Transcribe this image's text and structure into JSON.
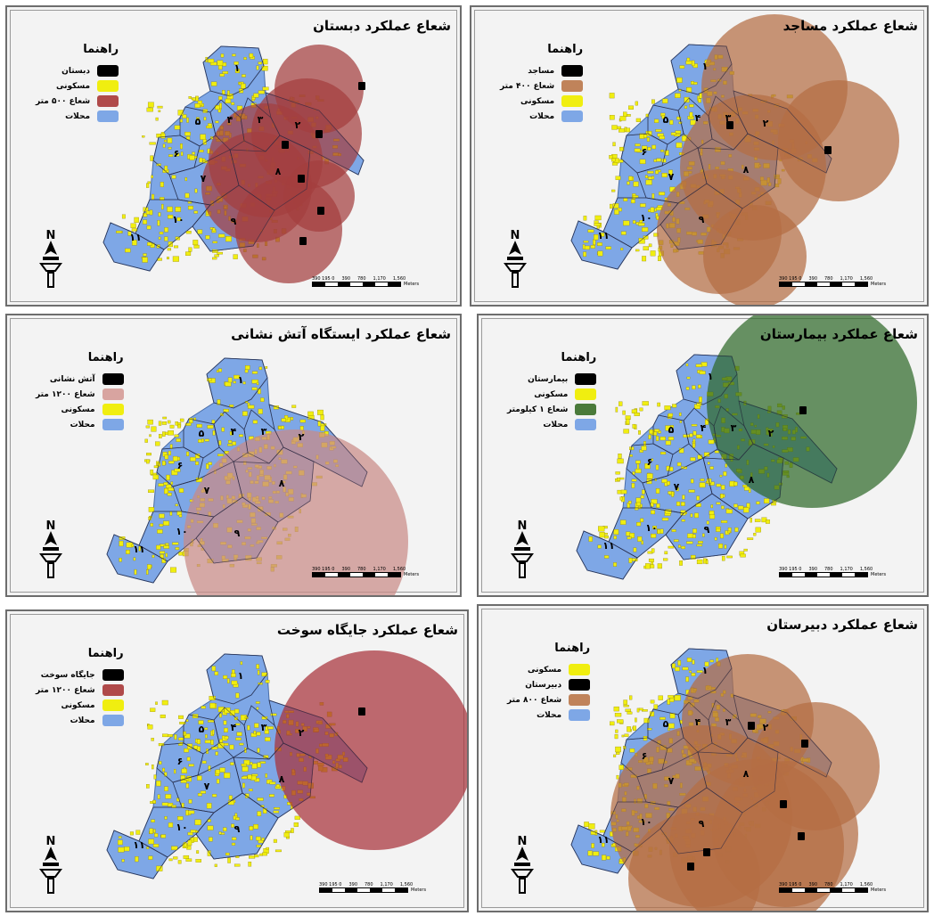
{
  "legend_title": "راهنما",
  "scale_ticks": [
    "390 195 0",
    "390",
    "780",
    "1,170",
    "1,560"
  ],
  "scale_unit": "Meters",
  "north_label": "N",
  "district_labels": [
    "۱",
    "۲",
    "۳",
    "۴",
    "۵",
    "۶",
    "۷",
    "۸",
    "۹",
    "۱۰",
    "۱۱"
  ],
  "colors": {
    "district": "#7ea7e6",
    "residential": "#f0ee10",
    "facility": "#000000",
    "panel_bg": "#f3f3f3"
  },
  "panels": [
    {
      "title": "شعاع عملکرد دبستان",
      "legend": [
        {
          "label": "دبستان",
          "color": "#000000"
        },
        {
          "label": "مسکونی",
          "color": "#f0ee10"
        },
        {
          "label": "شعاع ۵۰۰ متر",
          "color": "#b04a4a"
        },
        {
          "label": "محلات",
          "color": "#7ea7e6"
        }
      ],
      "buffer_color": "#a43e3e"
    },
    {
      "title": "شعاع عملکرد مساجد",
      "legend": [
        {
          "label": "مساجد",
          "color": "#000000"
        },
        {
          "label": "شعاع ۴۰۰ متر",
          "color": "#c0835a"
        },
        {
          "label": "مسکونی",
          "color": "#f0ee10"
        },
        {
          "label": "محلات",
          "color": "#7ea7e6"
        }
      ],
      "buffer_color": "#b46e44"
    },
    {
      "title": "شعاع عملکرد ایستگاه آتش نشانی",
      "legend": [
        {
          "label": "آتش نشانی",
          "color": "#000000"
        },
        {
          "label": "شعاع ۱۲۰۰ متر",
          "color": "#d8a4a0"
        },
        {
          "label": "مسکونی",
          "color": "#f0ee10"
        },
        {
          "label": "محلات",
          "color": "#7ea7e6"
        }
      ],
      "buffer_color": "#c98a86"
    },
    {
      "title": "شعاع عملکرد بیمارستان",
      "legend": [
        {
          "label": "بیمارستان",
          "color": "#000000"
        },
        {
          "label": "مسکونی",
          "color": "#f0ee10"
        },
        {
          "label": "شعاع ۱ کیلومتر",
          "color": "#4a7a3a"
        },
        {
          "label": "محلات",
          "color": "#7ea7e6"
        }
      ],
      "buffer_color": "#2f6a2a"
    },
    {
      "title": "شعاع عملکرد جایگاه سوخت",
      "legend": [
        {
          "label": "جایگاه سوخت",
          "color": "#000000"
        },
        {
          "label": "شعاع ۱۲۰۰ متر",
          "color": "#b04a4a"
        },
        {
          "label": "مسکونی",
          "color": "#f0ee10"
        },
        {
          "label": "محلات",
          "color": "#7ea7e6"
        }
      ],
      "buffer_color": "#a8323a"
    },
    {
      "title": "شعاع عملکرد دبیرستان",
      "legend": [
        {
          "label": "مسکونی",
          "color": "#f0ee10"
        },
        {
          "label": "دبیرستان",
          "color": "#000000"
        },
        {
          "label": "شعاع ۸۰۰ متر",
          "color": "#c0835a"
        },
        {
          "label": "محلات",
          "color": "#7ea7e6"
        }
      ],
      "buffer_color": "#b46e44"
    }
  ]
}
